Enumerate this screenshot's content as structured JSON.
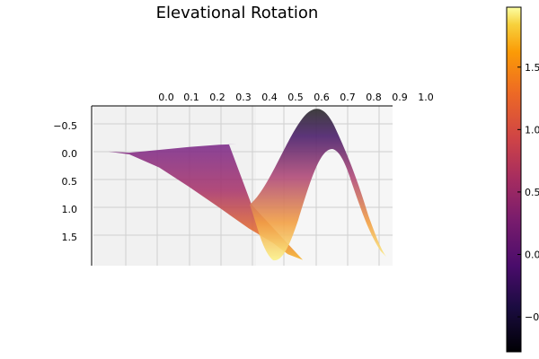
{
  "chart_data": {
    "type": "surface",
    "title": "Elevational Rotation",
    "xlabel": "",
    "ylabel": "",
    "x_ticks": [
      "0.0",
      "0.1",
      "0.2",
      "0.3",
      "0.4",
      "0.5",
      "0.6",
      "0.7",
      "0.8",
      "0.9",
      "1.0"
    ],
    "y_ticks": [
      "−0.5",
      "0.0",
      "0.5",
      "1.0",
      "1.5"
    ],
    "xlim": [
      0,
      1
    ],
    "ylim": [
      -0.8,
      2.0
    ],
    "grid": true,
    "colormap": "inferno",
    "colorbar": {
      "ticks": [
        "1.5",
        "1.0",
        "0.5",
        "0.0",
        "−0.5"
      ],
      "tick_values": [
        1.5,
        1.0,
        0.5,
        0.0,
        -0.5
      ],
      "range": [
        -0.78,
        1.98
      ]
    },
    "series": [
      {
        "role": "top-edge",
        "x": [
          0.05,
          0.12,
          0.22,
          0.32,
          0.42,
          0.48,
          0.52,
          0.57,
          0.6,
          0.64,
          0.68,
          0.72,
          0.76,
          0.8,
          0.83,
          0.86,
          0.9,
          0.94,
          0.98
        ],
        "y": [
          0.0,
          0.02,
          -0.03,
          -0.08,
          -0.12,
          -0.13,
          0.3,
          0.85,
          0.95,
          0.75,
          0.35,
          -0.2,
          -0.7,
          -0.78,
          -0.55,
          -0.1,
          0.5,
          0.9,
          1.3
        ]
      },
      {
        "role": "bottom-edge",
        "x": [
          0.05,
          0.12,
          0.22,
          0.32,
          0.42,
          0.52,
          0.6,
          0.65,
          0.7,
          0.74,
          0.78,
          0.82,
          0.86,
          0.9,
          0.94,
          0.98
        ],
        "y": [
          0.0,
          0.05,
          0.28,
          0.62,
          0.98,
          1.35,
          1.6,
          1.8,
          1.9,
          1.5,
          0.8,
          0.05,
          0.05,
          0.7,
          1.4,
          1.8
        ]
      }
    ]
  }
}
